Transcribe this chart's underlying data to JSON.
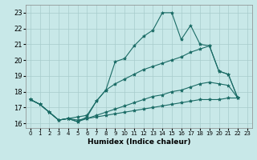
{
  "xlabel": "Humidex (Indice chaleur)",
  "background_color": "#c8e8e8",
  "grid_color": "#a8cccc",
  "line_color": "#1a6b65",
  "xlim": [
    -0.5,
    23.5
  ],
  "ylim": [
    15.7,
    23.5
  ],
  "yticks": [
    16,
    17,
    18,
    19,
    20,
    21,
    22,
    23
  ],
  "xticks": [
    0,
    1,
    2,
    3,
    4,
    5,
    6,
    7,
    8,
    9,
    10,
    11,
    12,
    13,
    14,
    15,
    16,
    17,
    18,
    19,
    20,
    21,
    22,
    23
  ],
  "lines": [
    {
      "x": [
        0,
        1,
        2,
        3,
        4,
        5,
        6,
        7,
        8,
        9,
        10,
        11,
        12,
        13,
        14,
        15,
        16,
        17,
        18,
        19,
        20,
        21,
        22
      ],
      "y": [
        17.5,
        17.2,
        16.7,
        16.2,
        16.3,
        16.1,
        16.4,
        17.4,
        18.1,
        19.9,
        20.1,
        20.9,
        21.5,
        21.9,
        23.0,
        23.0,
        21.3,
        22.2,
        21.0,
        20.9,
        19.3,
        19.1,
        17.6
      ]
    },
    {
      "x": [
        0,
        1,
        2,
        3,
        4,
        5,
        6,
        7,
        8,
        9,
        10,
        11,
        12,
        13,
        14,
        15,
        16,
        17,
        18,
        19,
        20,
        21,
        22
      ],
      "y": [
        17.5,
        17.2,
        16.7,
        16.2,
        16.3,
        16.4,
        16.5,
        17.4,
        18.1,
        18.5,
        18.8,
        19.1,
        19.4,
        19.6,
        19.8,
        20.0,
        20.2,
        20.5,
        20.7,
        20.9,
        19.3,
        19.1,
        17.6
      ]
    },
    {
      "x": [
        0,
        1,
        2,
        3,
        4,
        5,
        6,
        7,
        8,
        9,
        10,
        11,
        12,
        13,
        14,
        15,
        16,
        17,
        18,
        19,
        20,
        21,
        22
      ],
      "y": [
        17.5,
        17.2,
        16.7,
        16.2,
        16.3,
        16.2,
        16.3,
        16.5,
        16.7,
        16.9,
        17.1,
        17.3,
        17.5,
        17.7,
        17.8,
        18.0,
        18.1,
        18.3,
        18.5,
        18.6,
        18.5,
        18.4,
        17.6
      ]
    },
    {
      "x": [
        0,
        1,
        2,
        3,
        4,
        5,
        6,
        7,
        8,
        9,
        10,
        11,
        12,
        13,
        14,
        15,
        16,
        17,
        18,
        19,
        20,
        21,
        22
      ],
      "y": [
        17.5,
        17.2,
        16.7,
        16.2,
        16.3,
        16.1,
        16.3,
        16.4,
        16.5,
        16.6,
        16.7,
        16.8,
        16.9,
        17.0,
        17.1,
        17.2,
        17.3,
        17.4,
        17.5,
        17.5,
        17.5,
        17.6,
        17.6
      ]
    }
  ]
}
